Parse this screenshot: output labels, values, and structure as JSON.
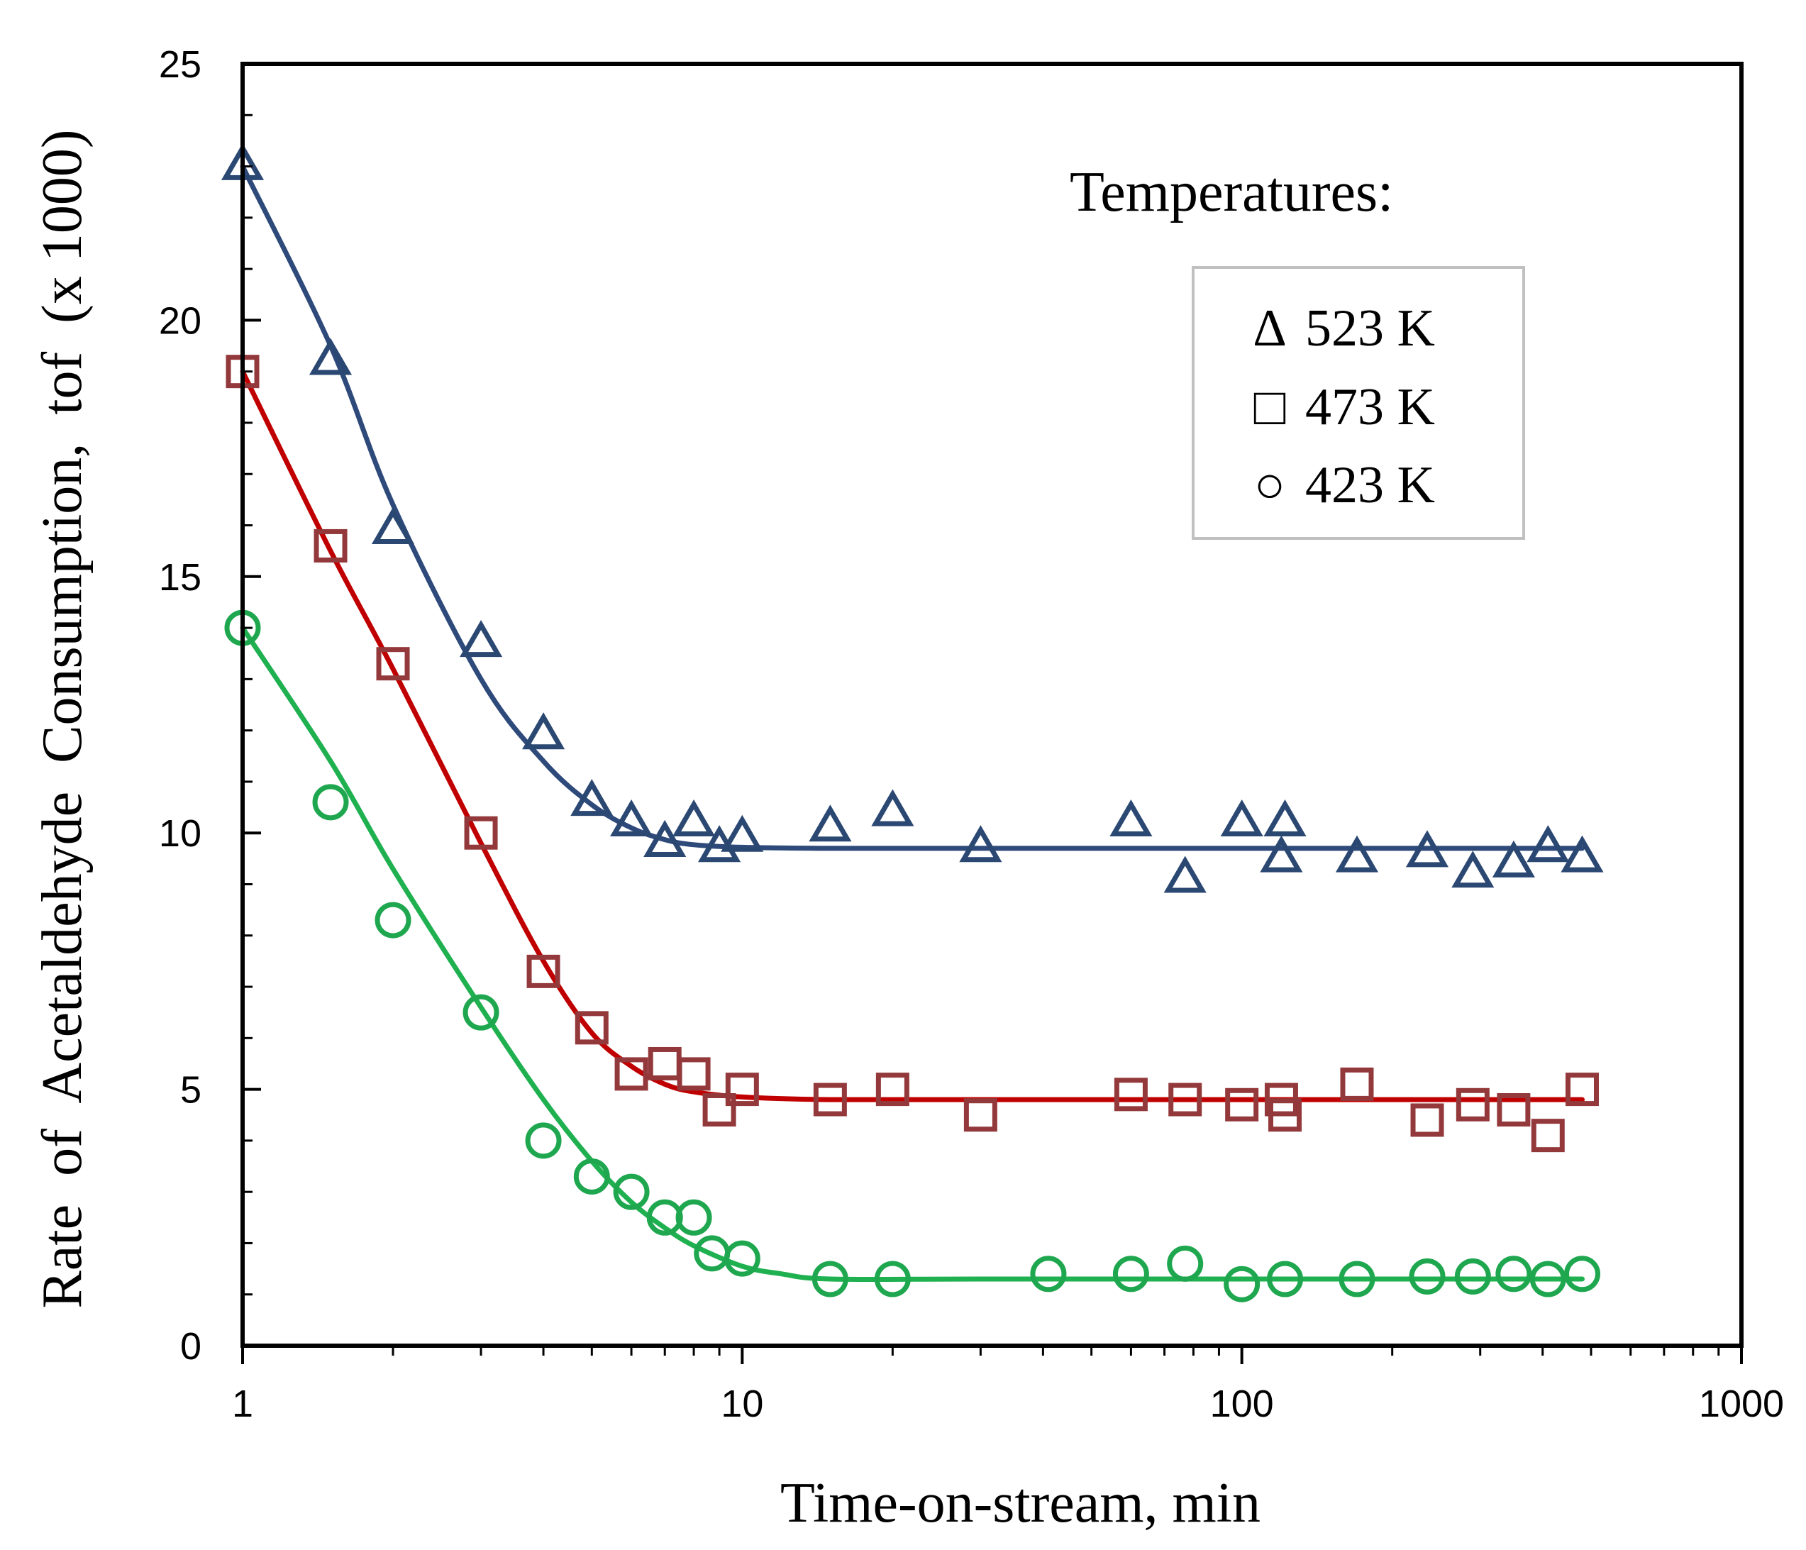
{
  "chart_data": {
    "type": "scatter",
    "title": "",
    "xlabel": "Time-on-stream, min",
    "ylabel": "Rate  of  Acetaldehyde  Consumption,  tof  (x 1000)",
    "xscale": "log",
    "xlim": [
      1,
      1000
    ],
    "ylim": [
      0,
      25
    ],
    "x_ticks": [
      1,
      10,
      100,
      1000
    ],
    "x_tick_labels": [
      "1",
      "10",
      "100",
      "1000"
    ],
    "y_ticks": [
      0,
      5,
      10,
      15,
      20,
      25
    ],
    "y_tick_labels": [
      "0",
      "5",
      "10",
      "15",
      "20",
      "25"
    ],
    "legend": {
      "title": "Temperatures:",
      "placement": "top-right",
      "entries": [
        {
          "symbol": "Δ",
          "label": "523 K"
        },
        {
          "symbol": "□",
          "label": "473 K"
        },
        {
          "symbol": "○",
          "label": "423 K"
        }
      ]
    },
    "series": [
      {
        "name": "523 K",
        "marker": "triangle",
        "marker_color": "#2b4873",
        "line_color": "#2e4a7a",
        "points": [
          [
            1,
            23.0
          ],
          [
            1.5,
            19.2
          ],
          [
            2,
            15.9
          ],
          [
            3,
            13.7
          ],
          [
            4,
            11.9
          ],
          [
            5,
            10.6
          ],
          [
            6,
            10.2
          ],
          [
            7,
            9.8
          ],
          [
            8,
            10.2
          ],
          [
            9,
            9.7
          ],
          [
            10,
            9.9
          ],
          [
            15,
            10.1
          ],
          [
            20,
            10.4
          ],
          [
            30,
            9.7
          ],
          [
            60,
            10.2
          ],
          [
            77,
            9.1
          ],
          [
            100,
            10.2
          ],
          [
            120,
            9.5
          ],
          [
            122,
            10.2
          ],
          [
            170,
            9.5
          ],
          [
            235,
            9.6
          ],
          [
            290,
            9.2
          ],
          [
            350,
            9.4
          ],
          [
            410,
            9.7
          ],
          [
            480,
            9.5
          ]
        ],
        "fit": [
          [
            1,
            23.0
          ],
          [
            1.5,
            19.5
          ],
          [
            2,
            16.4
          ],
          [
            3,
            13.0
          ],
          [
            4,
            11.4
          ],
          [
            5,
            10.55
          ],
          [
            6,
            10.1
          ],
          [
            7,
            9.87
          ],
          [
            8,
            9.77
          ],
          [
            10,
            9.72
          ],
          [
            15,
            9.7
          ],
          [
            30,
            9.7
          ],
          [
            100,
            9.7
          ],
          [
            480,
            9.7
          ]
        ]
      },
      {
        "name": "473 K",
        "marker": "square",
        "marker_color": "#93393b",
        "line_color": "#c00000",
        "points": [
          [
            1,
            19.0
          ],
          [
            1.5,
            15.6
          ],
          [
            2,
            13.3
          ],
          [
            3,
            10.0
          ],
          [
            4,
            7.3
          ],
          [
            5,
            6.2
          ],
          [
            6,
            5.3
          ],
          [
            7,
            5.5
          ],
          [
            8,
            5.3
          ],
          [
            9,
            4.6
          ],
          [
            10,
            5.0
          ],
          [
            15,
            4.8
          ],
          [
            20,
            5.0
          ],
          [
            30,
            4.5
          ],
          [
            60,
            4.9
          ],
          [
            77,
            4.8
          ],
          [
            100,
            4.7
          ],
          [
            120,
            4.8
          ],
          [
            122,
            4.5
          ],
          [
            170,
            5.1
          ],
          [
            235,
            4.4
          ],
          [
            290,
            4.7
          ],
          [
            350,
            4.6
          ],
          [
            410,
            4.1
          ],
          [
            480,
            5.0
          ]
        ],
        "fit": [
          [
            1,
            19.0
          ],
          [
            1.5,
            15.5
          ],
          [
            2,
            13.2
          ],
          [
            3,
            9.8
          ],
          [
            4,
            7.5
          ],
          [
            5,
            6.1
          ],
          [
            6,
            5.45
          ],
          [
            7,
            5.1
          ],
          [
            8,
            4.95
          ],
          [
            10,
            4.85
          ],
          [
            15,
            4.8
          ],
          [
            30,
            4.8
          ],
          [
            100,
            4.8
          ],
          [
            480,
            4.8
          ]
        ]
      },
      {
        "name": "423 K",
        "marker": "circle",
        "marker_color": "#1fa74f",
        "line_color": "#1fb050",
        "points": [
          [
            1,
            14.0
          ],
          [
            1.5,
            10.6
          ],
          [
            2,
            8.3
          ],
          [
            3,
            6.5
          ],
          [
            4,
            4.0
          ],
          [
            5,
            3.3
          ],
          [
            6,
            3.0
          ],
          [
            7,
            2.5
          ],
          [
            8,
            2.5
          ],
          [
            8.7,
            1.8
          ],
          [
            10,
            1.7
          ],
          [
            15,
            1.3
          ],
          [
            20,
            1.3
          ],
          [
            41,
            1.4
          ],
          [
            60,
            1.4
          ],
          [
            77,
            1.6
          ],
          [
            100,
            1.2
          ],
          [
            122,
            1.3
          ],
          [
            170,
            1.3
          ],
          [
            235,
            1.35
          ],
          [
            290,
            1.35
          ],
          [
            350,
            1.4
          ],
          [
            410,
            1.3
          ],
          [
            480,
            1.4
          ]
        ],
        "fit": [
          [
            1,
            14.0
          ],
          [
            1.5,
            11.4
          ],
          [
            2,
            9.3
          ],
          [
            3,
            6.6
          ],
          [
            4,
            4.8
          ],
          [
            5,
            3.6
          ],
          [
            6,
            2.8
          ],
          [
            7,
            2.3
          ],
          [
            8,
            1.95
          ],
          [
            10,
            1.55
          ],
          [
            12,
            1.4
          ],
          [
            15,
            1.3
          ],
          [
            30,
            1.3
          ],
          [
            100,
            1.3
          ],
          [
            480,
            1.3
          ]
        ]
      }
    ]
  }
}
